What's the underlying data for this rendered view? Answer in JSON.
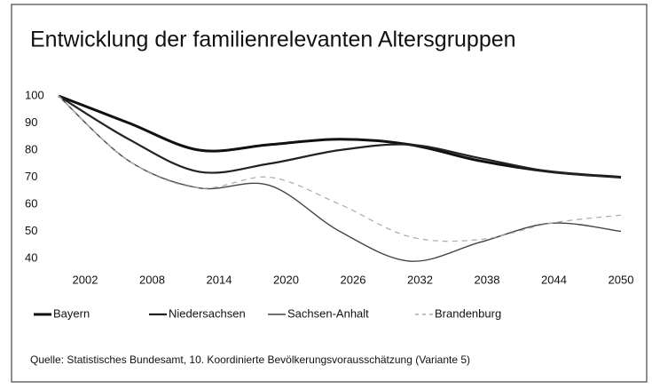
{
  "chart_data": {
    "type": "line",
    "title": "Entwicklung der familienrelevanten Altersgruppen",
    "source": "Quelle: Statistisches Bundesamt, 10. Koordinierte Bevölkerungsvorausschätzung (Variante 5)",
    "x": [
      2002,
      2008,
      2014,
      2020,
      2026,
      2032,
      2038,
      2044,
      2050
    ],
    "xlim": [
      2002,
      2050
    ],
    "xticks": [
      2002,
      2008,
      2014,
      2020,
      2026,
      2032,
      2038,
      2044,
      2050
    ],
    "ylim": [
      40,
      100
    ],
    "yticks": [
      40,
      50,
      60,
      70,
      80,
      90,
      100
    ],
    "series": [
      {
        "name": "Bayern",
        "color": "#111111",
        "width": 3,
        "values": [
          100,
          90,
          80,
          82,
          84,
          82,
          76,
          72,
          70
        ]
      },
      {
        "name": "Niedersachsen",
        "color": "#222222",
        "width": 2.2,
        "values": [
          100,
          84,
          72,
          75,
          80,
          82,
          77,
          72,
          70
        ]
      },
      {
        "name": "Sachsen-Anhalt",
        "color": "#444444",
        "width": 1.4,
        "values": [
          100,
          76,
          66,
          67,
          50,
          39,
          46,
          53,
          50
        ]
      },
      {
        "name": "Brandenburg",
        "color": "#aaaaaa",
        "width": 1.2,
        "dash": true,
        "values": [
          100,
          76,
          66,
          70,
          60,
          48,
          47,
          53,
          56
        ]
      }
    ]
  }
}
